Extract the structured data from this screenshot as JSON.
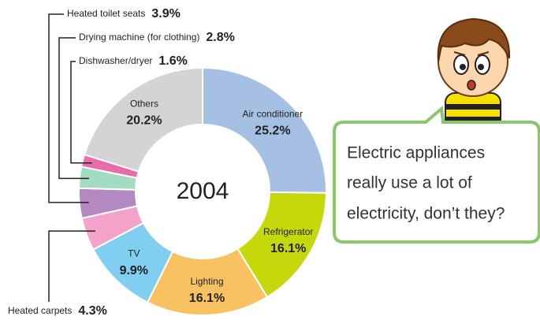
{
  "chart_data": {
    "type": "donut",
    "center_label": "2004",
    "categories": [
      "Air conditioner",
      "Refrigerator",
      "Lighting",
      "TV",
      "Heated carpets",
      "Heated toilet seats",
      "Drying machine (for clothing)",
      "Dishwasher/dryer",
      "Others"
    ],
    "values": [
      25.2,
      16.1,
      16.1,
      9.9,
      4.3,
      3.9,
      2.8,
      1.6,
      20.2
    ],
    "value_labels": [
      "25.2%",
      "16.1%",
      "16.1%",
      "9.9%",
      "4.3%",
      "3.9%",
      "2.8%",
      "1.6%",
      "20.2%"
    ],
    "colors": [
      "#a6c0e4",
      "#c5d80c",
      "#f8c263",
      "#80cff1",
      "#f3a3c9",
      "#b488c0",
      "#a2dcc2",
      "#e86ca9",
      "#d4d4d4"
    ]
  },
  "speech": [
    "Electric appliances",
    "really use a lot of",
    "electricity, don’t they?"
  ]
}
